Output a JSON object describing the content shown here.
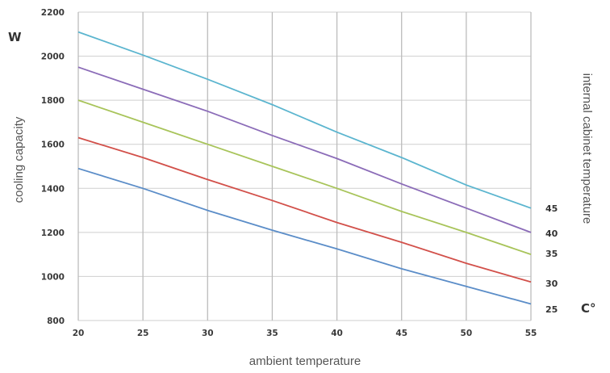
{
  "chart_data": {
    "type": "line",
    "title": "",
    "xlabel": "ambient temperature",
    "ylabel": "cooling capacity",
    "y_unit": "W",
    "series_title": "internal cabinet temperature",
    "series_unit": "C°",
    "x": [
      20,
      25,
      30,
      35,
      40,
      45,
      50,
      55
    ],
    "xlim": [
      20,
      55
    ],
    "ylim": [
      800,
      2200
    ],
    "x_ticks": [
      "20",
      "25",
      "30",
      "35",
      "40",
      "45",
      "50",
      "55"
    ],
    "y_ticks": [
      "800",
      "1000",
      "1200",
      "1400",
      "1600",
      "1800",
      "2000",
      "2200"
    ],
    "grid": true,
    "legend": "right",
    "series": [
      {
        "name": "45",
        "color": "#5bb5cf",
        "values": [
          2110,
          2005,
          1895,
          1780,
          1655,
          1540,
          1415,
          1310
        ]
      },
      {
        "name": "40",
        "color": "#8b6cb8",
        "values": [
          1950,
          1850,
          1750,
          1640,
          1535,
          1420,
          1310,
          1200
        ]
      },
      {
        "name": "35",
        "color": "#a8c45a",
        "values": [
          1800,
          1700,
          1600,
          1500,
          1400,
          1295,
          1200,
          1100
        ]
      },
      {
        "name": "30",
        "color": "#d2504a",
        "values": [
          1630,
          1540,
          1440,
          1345,
          1245,
          1155,
          1060,
          975
        ]
      },
      {
        "name": "25",
        "color": "#5b8dc8",
        "values": [
          1490,
          1400,
          1300,
          1210,
          1125,
          1035,
          955,
          875
        ]
      }
    ]
  }
}
